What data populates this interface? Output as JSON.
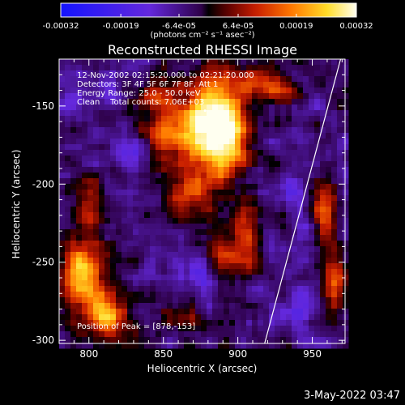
{
  "chart_data": {
    "type": "heatmap",
    "title": "Reconstructed RHESSI Image",
    "xlabel": "Heliocentric X (arcsec)",
    "ylabel": "Heliocentric Y (arcsec)",
    "xlim": [
      780,
      972
    ],
    "ylim": [
      -302,
      -120
    ],
    "x_ticks": [
      800,
      850,
      900,
      950
    ],
    "y_ticks": [
      -150,
      -200,
      -250,
      -300
    ],
    "colorbar": {
      "ticks": [
        "-0.00032",
        "-0.00019",
        "-6.4e-05",
        "6.4e-05",
        "0.00019",
        "0.00032"
      ],
      "unit_label": "(photons cm⁻² s⁻¹ asec⁻²)",
      "range": [
        -0.00032,
        0.00032
      ]
    },
    "annotations": {
      "time_range": "12-Nov-2002 02:15:20.000 to 02:21:20.000",
      "detectors": "Detectors: 3F 4F 5F 6F 7F 8F, Att 1",
      "energy": "Energy Range: 25.0 - 50.0 keV",
      "method": "Clean    Total counts: 7.06E+03",
      "peak": "Position of Peak = [878,-153]"
    },
    "peak_position": [
      878,
      -153
    ],
    "limb_line": {
      "x": [
        918,
        969
      ],
      "y": [
        -302,
        -120
      ]
    },
    "blobs": [
      {
        "x": 880,
        "y": -160,
        "v": 0.0003,
        "sx": 12,
        "sy": 20
      },
      {
        "x": 893,
        "y": -170,
        "v": 0.00028,
        "sx": 9,
        "sy": 22
      },
      {
        "x": 855,
        "y": -170,
        "v": 0.00022,
        "sx": 13,
        "sy": 12
      },
      {
        "x": 866,
        "y": -205,
        "v": 0.00016,
        "sx": 12,
        "sy": 10
      },
      {
        "x": 846,
        "y": -145,
        "v": 0.00014,
        "sx": 9,
        "sy": 8
      },
      {
        "x": 912,
        "y": -135,
        "v": 0.00015,
        "sx": 10,
        "sy": 8
      },
      {
        "x": 795,
        "y": -258,
        "v": 0.00029,
        "sx": 11,
        "sy": 14
      },
      {
        "x": 812,
        "y": -280,
        "v": 0.00018,
        "sx": 9,
        "sy": 10
      },
      {
        "x": 895,
        "y": -245,
        "v": 0.00016,
        "sx": 14,
        "sy": 10
      },
      {
        "x": 905,
        "y": -225,
        "v": 0.00012,
        "sx": 8,
        "sy": 8
      },
      {
        "x": 958,
        "y": -215,
        "v": 0.00022,
        "sx": 6,
        "sy": 12
      },
      {
        "x": 965,
        "y": -262,
        "v": 0.0002,
        "sx": 6,
        "sy": 14
      },
      {
        "x": 810,
        "y": -290,
        "v": 0.0001,
        "sx": 10,
        "sy": 8
      },
      {
        "x": 860,
        "y": -285,
        "v": 0.00012,
        "sx": 10,
        "sy": 6
      },
      {
        "x": 800,
        "y": -215,
        "v": 0.00011,
        "sx": 10,
        "sy": 12
      },
      {
        "x": 930,
        "y": -140,
        "v": 0.00011,
        "sx": 9,
        "sy": 8
      },
      {
        "x": 870,
        "y": -255,
        "v": -0.00012,
        "sx": 12,
        "sy": 7
      },
      {
        "x": 935,
        "y": -205,
        "v": -0.00013,
        "sx": 6,
        "sy": 7
      },
      {
        "x": 830,
        "y": -180,
        "v": -9e-05,
        "sx": 9,
        "sy": 8
      },
      {
        "x": 940,
        "y": -280,
        "v": -8e-05,
        "sx": 10,
        "sy": 10
      },
      {
        "x": 790,
        "y": -140,
        "v": -6e-05,
        "sx": 8,
        "sy": 8
      }
    ]
  },
  "footer": {
    "timestamp": "3-May-2022 03:47"
  }
}
